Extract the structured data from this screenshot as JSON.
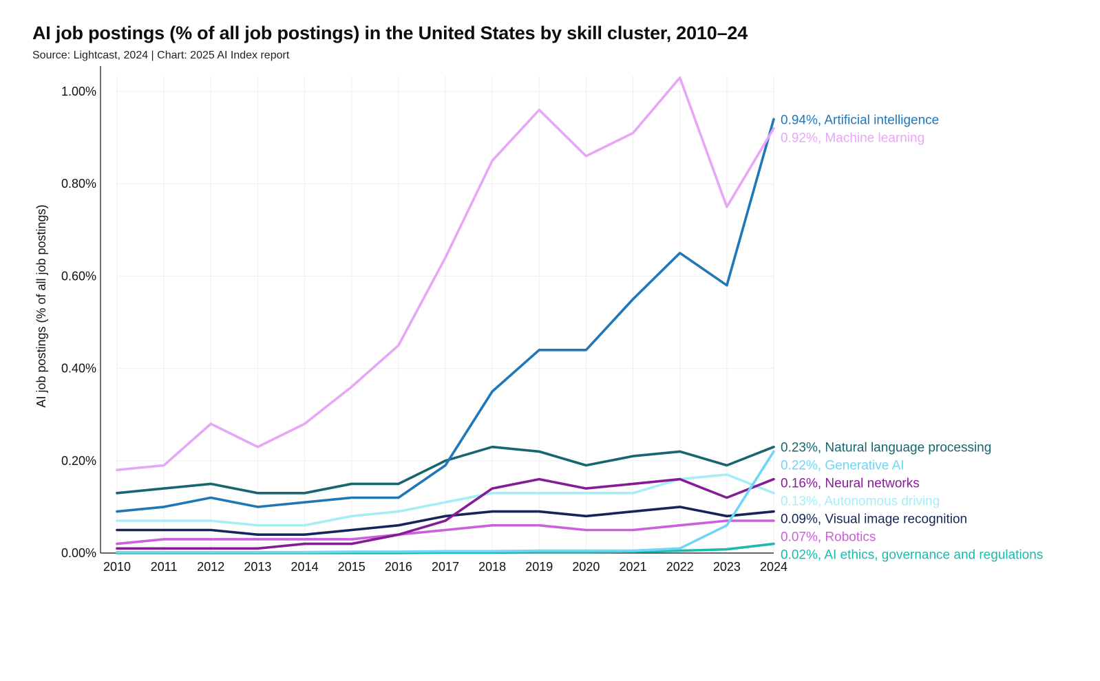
{
  "title": "AI job postings (% of all job postings) in the United States by skill cluster, 2010–24",
  "source": "Source: Lightcast, 2024 | Chart: 2025 AI Index report",
  "chart_data": {
    "type": "line",
    "ylabel": "AI job postings (% of all job postings)",
    "xlabel": "",
    "x": [
      2010,
      2011,
      2012,
      2013,
      2014,
      2015,
      2016,
      2017,
      2018,
      2019,
      2020,
      2021,
      2022,
      2023,
      2024
    ],
    "ylim": [
      0,
      1.0
    ],
    "y_ticks": [
      0,
      0.2,
      0.4,
      0.6,
      0.8,
      1.0
    ],
    "y_tick_labels": [
      "0.00%",
      "0.20%",
      "0.40%",
      "0.60%",
      "0.80%",
      "1.00%"
    ],
    "grid": true,
    "legend": "end-of-line labels at right",
    "series": [
      {
        "name": "Machine learning",
        "color": "#e8a6f7",
        "end_label": "0.92%, Machine learning",
        "values": [
          0.18,
          0.19,
          0.28,
          0.23,
          0.28,
          0.36,
          0.45,
          0.64,
          0.85,
          0.96,
          0.86,
          0.91,
          1.03,
          0.75,
          0.92
        ]
      },
      {
        "name": "Artificial intelligence",
        "color": "#1f77b8",
        "end_label": "0.94%, Artificial intelligence",
        "values": [
          0.09,
          0.1,
          0.12,
          0.1,
          0.11,
          0.12,
          0.12,
          0.19,
          0.35,
          0.44,
          0.44,
          0.55,
          0.65,
          0.58,
          0.94
        ]
      },
      {
        "name": "Natural language processing",
        "color": "#17656e",
        "end_label": "0.23%, Natural language processing",
        "values": [
          0.13,
          0.14,
          0.15,
          0.13,
          0.13,
          0.15,
          0.15,
          0.2,
          0.23,
          0.22,
          0.19,
          0.21,
          0.22,
          0.19,
          0.23
        ]
      },
      {
        "name": "Generative AI",
        "color": "#6fd6f5",
        "end_label": "0.22%, Generative AI",
        "values": [
          0.002,
          0.002,
          0.002,
          0.002,
          0.002,
          0.003,
          0.003,
          0.004,
          0.004,
          0.005,
          0.005,
          0.005,
          0.01,
          0.06,
          0.22
        ]
      },
      {
        "name": "Neural networks",
        "color": "#861b96",
        "end_label": "0.16%, Neural networks",
        "values": [
          0.01,
          0.01,
          0.01,
          0.01,
          0.02,
          0.02,
          0.04,
          0.07,
          0.14,
          0.16,
          0.14,
          0.15,
          0.16,
          0.12,
          0.16
        ]
      },
      {
        "name": "Autonomous driving",
        "color": "#a6eef6",
        "end_label": "0.13%, Autonomous driving",
        "values": [
          0.07,
          0.07,
          0.07,
          0.06,
          0.06,
          0.08,
          0.09,
          0.11,
          0.13,
          0.13,
          0.13,
          0.13,
          0.16,
          0.17,
          0.13
        ]
      },
      {
        "name": "Visual image recognition",
        "color": "#152558",
        "end_label": "0.09%, Visual image recognition",
        "values": [
          0.05,
          0.05,
          0.05,
          0.04,
          0.04,
          0.05,
          0.06,
          0.08,
          0.09,
          0.09,
          0.08,
          0.09,
          0.1,
          0.08,
          0.09
        ]
      },
      {
        "name": "Robotics",
        "color": "#cc5fdb",
        "end_label": "0.07%, Robotics",
        "values": [
          0.02,
          0.03,
          0.03,
          0.03,
          0.03,
          0.03,
          0.04,
          0.05,
          0.06,
          0.06,
          0.05,
          0.05,
          0.06,
          0.07,
          0.07
        ]
      },
      {
        "name": "AI ethics, governance and regulations",
        "color": "#1bb9ae",
        "end_label": "0.02%, AI ethics, governance and regulations",
        "values": [
          0.0,
          0.0,
          0.0,
          0.0,
          0.0,
          0.0,
          0.0,
          0.001,
          0.001,
          0.002,
          0.002,
          0.003,
          0.005,
          0.008,
          0.02
        ]
      }
    ]
  }
}
